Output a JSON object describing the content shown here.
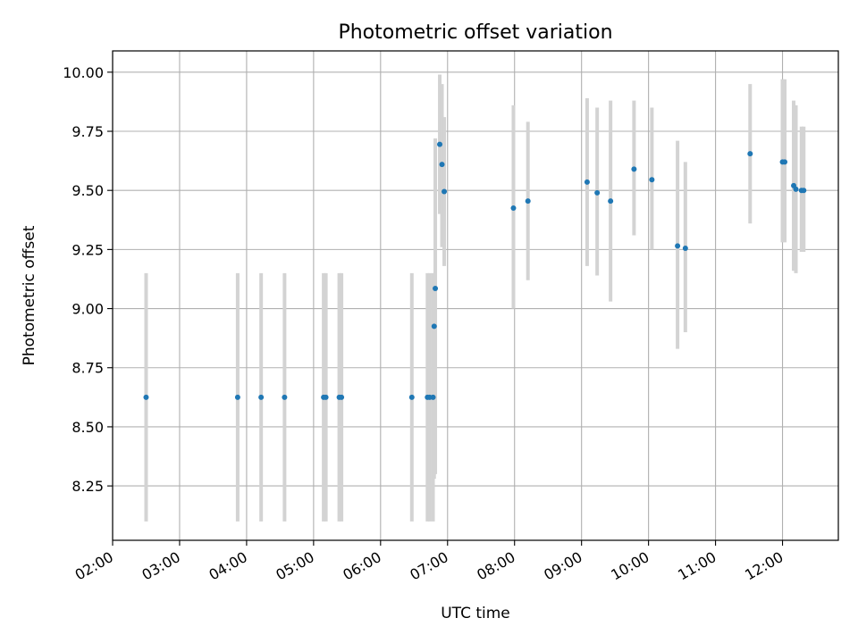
{
  "chart_data": {
    "type": "scatter",
    "title": "Photometric offset variation",
    "xlabel": "UTC time",
    "ylabel": "Photometric offset",
    "x_axis_kind": "time",
    "xlim": [
      "02:00",
      "12:50"
    ],
    "ylim": [
      8.02,
      10.09
    ],
    "x_ticks": [
      "02:00",
      "03:00",
      "04:00",
      "05:00",
      "06:00",
      "07:00",
      "08:00",
      "09:00",
      "10:00",
      "11:00",
      "12:00"
    ],
    "y_ticks": [
      "8.25",
      "8.50",
      "8.75",
      "9.00",
      "9.25",
      "9.50",
      "9.75",
      "10.00"
    ],
    "grid": true,
    "colors": {
      "points": "#1f77b4",
      "error_bars": "#d3d3d3",
      "grid": "#b0b0b0"
    },
    "series": [
      {
        "points": [
          {
            "x": "02:30",
            "y": 8.625,
            "err": [
              8.1,
              9.15
            ]
          },
          {
            "x": "03:52",
            "y": 8.625,
            "err": [
              8.1,
              9.15
            ]
          },
          {
            "x": "04:13",
            "y": 8.625,
            "err": [
              8.1,
              9.15
            ]
          },
          {
            "x": "04:34",
            "y": 8.625,
            "err": [
              8.1,
              9.15
            ]
          },
          {
            "x": "05:09",
            "y": 8.625,
            "err": [
              8.1,
              9.15
            ]
          },
          {
            "x": "05:11",
            "y": 8.625,
            "err": [
              8.1,
              9.15
            ]
          },
          {
            "x": "05:23",
            "y": 8.625,
            "err": [
              8.1,
              9.15
            ]
          },
          {
            "x": "05:25",
            "y": 8.625,
            "err": [
              8.1,
              9.15
            ]
          },
          {
            "x": "06:28",
            "y": 8.625,
            "err": [
              8.1,
              9.15
            ]
          },
          {
            "x": "06:42",
            "y": 8.625,
            "err": [
              8.1,
              9.15
            ]
          },
          {
            "x": "06:44",
            "y": 8.625,
            "err": [
              8.1,
              9.15
            ]
          },
          {
            "x": "06:47",
            "y": 8.625,
            "err": [
              8.1,
              9.15
            ]
          },
          {
            "x": "06:48",
            "y": 8.925,
            "err": [
              8.28,
              9.15
            ]
          },
          {
            "x": "06:49",
            "y": 9.085,
            "err": [
              8.3,
              9.72
            ]
          },
          {
            "x": "06:53",
            "y": 9.695,
            "err": [
              9.4,
              9.99
            ]
          },
          {
            "x": "06:55",
            "y": 9.61,
            "err": [
              9.26,
              9.95
            ]
          },
          {
            "x": "06:57",
            "y": 9.495,
            "err": [
              9.18,
              9.81
            ]
          },
          {
            "x": "07:59",
            "y": 9.425,
            "err": [
              9.0,
              9.86
            ]
          },
          {
            "x": "08:12",
            "y": 9.455,
            "err": [
              9.12,
              9.79
            ]
          },
          {
            "x": "09:05",
            "y": 9.535,
            "err": [
              9.18,
              9.89
            ]
          },
          {
            "x": "09:14",
            "y": 9.49,
            "err": [
              9.14,
              9.85
            ]
          },
          {
            "x": "09:26",
            "y": 9.455,
            "err": [
              9.03,
              9.88
            ]
          },
          {
            "x": "09:47",
            "y": 9.59,
            "err": [
              9.31,
              9.88
            ]
          },
          {
            "x": "10:03",
            "y": 9.545,
            "err": [
              9.25,
              9.85
            ]
          },
          {
            "x": "10:26",
            "y": 9.265,
            "err": [
              8.83,
              9.71
            ]
          },
          {
            "x": "10:33",
            "y": 9.255,
            "err": [
              8.9,
              9.62
            ]
          },
          {
            "x": "11:31",
            "y": 9.655,
            "err": [
              9.36,
              9.95
            ]
          },
          {
            "x": "12:00",
            "y": 9.62,
            "err": [
              9.28,
              9.97
            ]
          },
          {
            "x": "12:02",
            "y": 9.62,
            "err": [
              9.28,
              9.97
            ]
          },
          {
            "x": "12:10",
            "y": 9.52,
            "err": [
              9.16,
              9.88
            ]
          },
          {
            "x": "12:12",
            "y": 9.505,
            "err": [
              9.15,
              9.86
            ]
          },
          {
            "x": "12:17",
            "y": 9.5,
            "err": [
              9.24,
              9.77
            ]
          },
          {
            "x": "12:19",
            "y": 9.5,
            "err": [
              9.24,
              9.77
            ]
          }
        ]
      }
    ]
  }
}
